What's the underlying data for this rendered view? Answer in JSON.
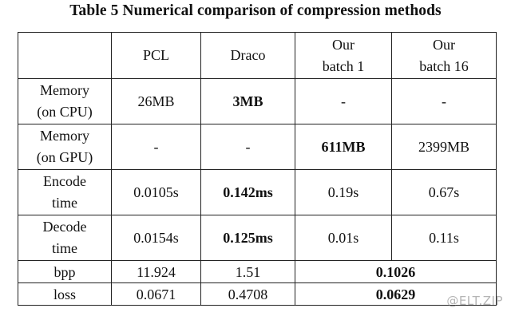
{
  "caption": "Table 5 Numerical comparison of compression methods",
  "table": {
    "headers": [
      "",
      "PCL",
      "Draco",
      "Our\nbatch 1",
      "Our\nbatch 16"
    ],
    "rows": [
      {
        "label": "Memory\n(on CPU)",
        "cells": [
          "26MB",
          "3MB",
          "-",
          "-"
        ],
        "bold": [
          false,
          true,
          false,
          false
        ]
      },
      {
        "label": "Memory\n(on GPU)",
        "cells": [
          "-",
          "-",
          "611MB",
          "2399MB"
        ],
        "bold": [
          false,
          false,
          true,
          false
        ]
      },
      {
        "label": "Encode\ntime",
        "cells": [
          "0.0105s",
          "0.142ms",
          "0.19s",
          "0.67s"
        ],
        "bold": [
          false,
          true,
          false,
          false
        ]
      },
      {
        "label": "Decode\ntime",
        "cells": [
          "0.0154s",
          "0.125ms",
          "0.01s",
          "0.11s"
        ],
        "bold": [
          false,
          true,
          false,
          false
        ]
      },
      {
        "label": "bpp",
        "cells": [
          "11.924",
          "1.51",
          "0.1026"
        ],
        "bold": [
          false,
          false,
          true
        ],
        "merged_last": true
      },
      {
        "label": "loss",
        "cells": [
          "0.0671",
          "0.4708",
          "0.0629"
        ],
        "bold": [
          false,
          false,
          true
        ],
        "merged_last": true
      }
    ]
  },
  "watermark": "@ELT.ZIP"
}
